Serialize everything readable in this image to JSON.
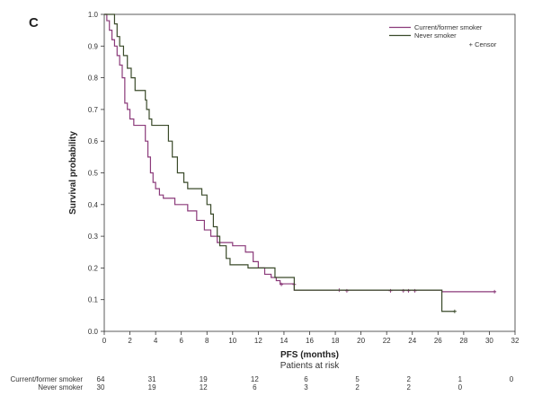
{
  "panel_label": "C",
  "chart_data": {
    "type": "line",
    "step": true,
    "xlabel": "PFS (months)",
    "ylabel": "Survival probability",
    "xlim": [
      0,
      32
    ],
    "ylim": [
      0,
      1
    ],
    "xticks": [
      0,
      2,
      4,
      6,
      8,
      10,
      12,
      14,
      16,
      18,
      20,
      22,
      24,
      26,
      28,
      30,
      32
    ],
    "yticks": [
      0.0,
      0.1,
      0.2,
      0.3,
      0.4,
      0.5,
      0.6,
      0.7,
      0.8,
      0.9,
      1.0
    ],
    "grid": false,
    "legend_position": "top-right",
    "censor_label": "+ Censor",
    "series": [
      {
        "name": "Current/former smoker",
        "color": "#8b3a7a",
        "points": [
          [
            0,
            1.0
          ],
          [
            0.2,
            0.98
          ],
          [
            0.4,
            0.95
          ],
          [
            0.6,
            0.92
          ],
          [
            0.8,
            0.9
          ],
          [
            1.0,
            0.87
          ],
          [
            1.2,
            0.84
          ],
          [
            1.4,
            0.8
          ],
          [
            1.6,
            0.72
          ],
          [
            1.8,
            0.7
          ],
          [
            2.0,
            0.67
          ],
          [
            2.3,
            0.65
          ],
          [
            3.2,
            0.6
          ],
          [
            3.4,
            0.55
          ],
          [
            3.6,
            0.5
          ],
          [
            3.8,
            0.47
          ],
          [
            4.0,
            0.45
          ],
          [
            4.3,
            0.43
          ],
          [
            4.6,
            0.42
          ],
          [
            5.5,
            0.4
          ],
          [
            6.5,
            0.38
          ],
          [
            7.2,
            0.35
          ],
          [
            7.8,
            0.32
          ],
          [
            8.3,
            0.3
          ],
          [
            8.8,
            0.28
          ],
          [
            10.0,
            0.27
          ],
          [
            11.0,
            0.25
          ],
          [
            11.6,
            0.22
          ],
          [
            12.0,
            0.2
          ],
          [
            12.5,
            0.18
          ],
          [
            13.0,
            0.17
          ],
          [
            13.4,
            0.16
          ],
          [
            13.7,
            0.15
          ],
          [
            14.8,
            0.13
          ],
          [
            26.3,
            0.125
          ],
          [
            30.5,
            0.125
          ]
        ],
        "censors": [
          [
            13.8,
            0.148
          ],
          [
            14.8,
            0.148
          ],
          [
            18.3,
            0.13
          ],
          [
            18.9,
            0.128
          ],
          [
            22.3,
            0.128
          ],
          [
            23.3,
            0.128
          ],
          [
            23.7,
            0.128
          ],
          [
            24.2,
            0.128
          ],
          [
            30.4,
            0.125
          ]
        ]
      },
      {
        "name": "Never smoker",
        "color": "#3a4a2a",
        "points": [
          [
            0,
            1.0
          ],
          [
            0.8,
            0.97
          ],
          [
            1.0,
            0.93
          ],
          [
            1.2,
            0.9
          ],
          [
            1.5,
            0.87
          ],
          [
            1.8,
            0.83
          ],
          [
            2.1,
            0.8
          ],
          [
            2.4,
            0.76
          ],
          [
            3.2,
            0.73
          ],
          [
            3.3,
            0.7
          ],
          [
            3.5,
            0.67
          ],
          [
            3.7,
            0.65
          ],
          [
            5.0,
            0.6
          ],
          [
            5.3,
            0.55
          ],
          [
            5.7,
            0.5
          ],
          [
            6.2,
            0.47
          ],
          [
            6.5,
            0.45
          ],
          [
            7.6,
            0.43
          ],
          [
            8.0,
            0.4
          ],
          [
            8.3,
            0.37
          ],
          [
            8.5,
            0.33
          ],
          [
            8.8,
            0.3
          ],
          [
            9.0,
            0.27
          ],
          [
            9.5,
            0.23
          ],
          [
            9.8,
            0.21
          ],
          [
            11.2,
            0.2
          ],
          [
            13.3,
            0.17
          ],
          [
            14.8,
            0.13
          ],
          [
            26.3,
            0.063
          ],
          [
            27.3,
            0.063
          ]
        ],
        "censors": [
          [
            27.3,
            0.063
          ]
        ]
      }
    ],
    "risk_table": {
      "title": "Patients at risk",
      "times": [
        0,
        4,
        8,
        12,
        16,
        20,
        24,
        28,
        32
      ],
      "rows": [
        {
          "label": "Current/former smoker",
          "counts": [
            "64",
            "31",
            "19",
            "12",
            "6",
            "5",
            "2",
            "1",
            "0"
          ]
        },
        {
          "label": "Never smoker",
          "counts": [
            "30",
            "19",
            "12",
            "6",
            "3",
            "2",
            "2",
            "0",
            ""
          ]
        }
      ]
    }
  }
}
